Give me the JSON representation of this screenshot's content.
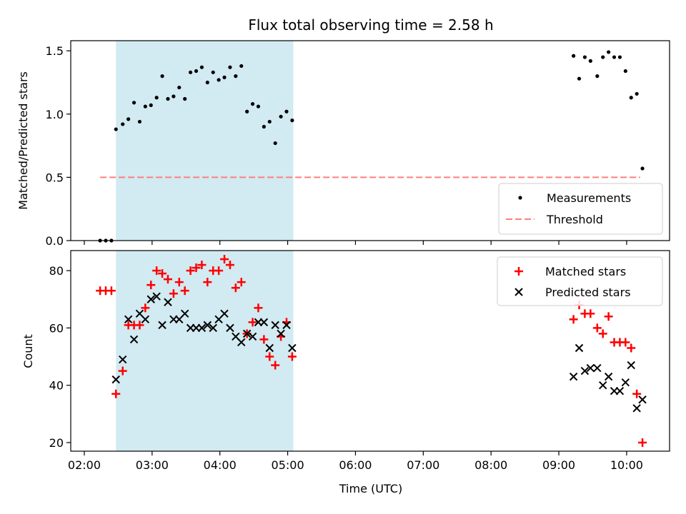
{
  "figure": {
    "title": "Flux total observing time = 2.58 h",
    "xlabel": "Time (UTC)",
    "x_ticks": [
      "02:00",
      "03:00",
      "04:00",
      "05:00",
      "06:00",
      "07:00",
      "08:00",
      "09:00",
      "10:00"
    ],
    "colors": {
      "shade": "#add8e6",
      "measurement": "#000000",
      "threshold": "#ff7f7f",
      "matched": "#ff0000",
      "predicted": "#000000"
    }
  },
  "chart_data": [
    {
      "type": "scatter",
      "ylabel": "Matched/Predicted stars",
      "xlim": [
        "01:48",
        "10:38"
      ],
      "ylim": [
        0,
        1.58
      ],
      "y_ticks": [
        "0.0",
        "0.5",
        "1.0",
        "1.5"
      ],
      "y_tick_values": [
        0,
        0.5,
        1.0,
        1.5
      ],
      "shaded_span": [
        "02:28",
        "05:05"
      ],
      "legend": {
        "position": "lower-right",
        "entries": [
          "Measurements",
          "Threshold"
        ]
      },
      "threshold": {
        "name": "Threshold",
        "y": 0.5,
        "x": [
          "02:14",
          "10:12"
        ],
        "style": "dashed"
      },
      "series": [
        {
          "name": "Measurements",
          "marker": "dot",
          "points": [
            [
              "02:14",
              0.0
            ],
            [
              "02:19",
              0.0
            ],
            [
              "02:24",
              0.0
            ],
            [
              "02:28",
              0.88
            ],
            [
              "02:34",
              0.92
            ],
            [
              "02:39",
              0.96
            ],
            [
              "02:44",
              1.09
            ],
            [
              "02:49",
              0.94
            ],
            [
              "02:54",
              1.06
            ],
            [
              "02:59",
              1.07
            ],
            [
              "03:04",
              1.13
            ],
            [
              "03:09",
              1.3
            ],
            [
              "03:14",
              1.12
            ],
            [
              "03:19",
              1.14
            ],
            [
              "03:24",
              1.21
            ],
            [
              "03:29",
              1.12
            ],
            [
              "03:34",
              1.33
            ],
            [
              "03:39",
              1.34
            ],
            [
              "03:44",
              1.37
            ],
            [
              "03:49",
              1.25
            ],
            [
              "03:54",
              1.33
            ],
            [
              "03:59",
              1.27
            ],
            [
              "04:04",
              1.29
            ],
            [
              "04:09",
              1.37
            ],
            [
              "04:14",
              1.3
            ],
            [
              "04:19",
              1.38
            ],
            [
              "04:24",
              1.02
            ],
            [
              "04:29",
              1.08
            ],
            [
              "04:34",
              1.06
            ],
            [
              "04:39",
              0.9
            ],
            [
              "04:44",
              0.94
            ],
            [
              "04:49",
              0.77
            ],
            [
              "04:54",
              0.98
            ],
            [
              "04:59",
              1.02
            ],
            [
              "05:04",
              0.95
            ],
            [
              "09:13",
              1.46
            ],
            [
              "09:18",
              1.28
            ],
            [
              "09:23",
              1.45
            ],
            [
              "09:28",
              1.42
            ],
            [
              "09:34",
              1.3
            ],
            [
              "09:39",
              1.45
            ],
            [
              "09:44",
              1.49
            ],
            [
              "09:49",
              1.45
            ],
            [
              "09:54",
              1.45
            ],
            [
              "09:59",
              1.34
            ],
            [
              "10:04",
              1.13
            ],
            [
              "10:09",
              1.16
            ],
            [
              "10:14",
              0.57
            ]
          ]
        }
      ]
    },
    {
      "type": "scatter",
      "ylabel": "Count",
      "xlim": [
        "01:48",
        "10:38"
      ],
      "ylim": [
        17,
        87
      ],
      "y_ticks": [
        "20",
        "40",
        "60",
        "80"
      ],
      "y_tick_values": [
        20,
        40,
        60,
        80
      ],
      "shaded_span": [
        "02:28",
        "05:05"
      ],
      "legend": {
        "position": "upper-right",
        "entries": [
          "Matched stars",
          "Predicted stars"
        ]
      },
      "series": [
        {
          "name": "Matched stars",
          "marker": "plus",
          "points": [
            [
              "02:14",
              73
            ],
            [
              "02:19",
              73
            ],
            [
              "02:24",
              73
            ],
            [
              "02:28",
              37
            ],
            [
              "02:34",
              45
            ],
            [
              "02:39",
              61
            ],
            [
              "02:44",
              61
            ],
            [
              "02:49",
              61
            ],
            [
              "02:54",
              67
            ],
            [
              "02:59",
              75
            ],
            [
              "03:04",
              80
            ],
            [
              "03:09",
              79
            ],
            [
              "03:14",
              77
            ],
            [
              "03:19",
              72
            ],
            [
              "03:24",
              76
            ],
            [
              "03:29",
              73
            ],
            [
              "03:34",
              80
            ],
            [
              "03:39",
              81
            ],
            [
              "03:44",
              82
            ],
            [
              "03:49",
              76
            ],
            [
              "03:54",
              80
            ],
            [
              "03:59",
              80
            ],
            [
              "04:04",
              84
            ],
            [
              "04:09",
              82
            ],
            [
              "04:14",
              74
            ],
            [
              "04:19",
              76
            ],
            [
              "04:24",
              58
            ],
            [
              "04:29",
              62
            ],
            [
              "04:34",
              67
            ],
            [
              "04:39",
              56
            ],
            [
              "04:44",
              50
            ],
            [
              "04:49",
              47
            ],
            [
              "04:54",
              57
            ],
            [
              "04:59",
              62
            ],
            [
              "05:04",
              50
            ],
            [
              "09:13",
              63
            ],
            [
              "09:18",
              68
            ],
            [
              "09:23",
              65
            ],
            [
              "09:28",
              65
            ],
            [
              "09:34",
              60
            ],
            [
              "09:39",
              58
            ],
            [
              "09:44",
              64
            ],
            [
              "09:49",
              55
            ],
            [
              "09:54",
              55
            ],
            [
              "09:59",
              55
            ],
            [
              "10:04",
              53
            ],
            [
              "10:09",
              37
            ],
            [
              "10:14",
              20
            ]
          ]
        },
        {
          "name": "Predicted stars",
          "marker": "x",
          "points": [
            [
              "02:28",
              42
            ],
            [
              "02:34",
              49
            ],
            [
              "02:39",
              63
            ],
            [
              "02:44",
              56
            ],
            [
              "02:49",
              65
            ],
            [
              "02:54",
              63
            ],
            [
              "02:59",
              70
            ],
            [
              "03:04",
              71
            ],
            [
              "03:09",
              61
            ],
            [
              "03:14",
              69
            ],
            [
              "03:19",
              63
            ],
            [
              "03:24",
              63
            ],
            [
              "03:29",
              65
            ],
            [
              "03:34",
              60
            ],
            [
              "03:39",
              60
            ],
            [
              "03:44",
              60
            ],
            [
              "03:49",
              61
            ],
            [
              "03:54",
              60
            ],
            [
              "03:59",
              63
            ],
            [
              "04:04",
              65
            ],
            [
              "04:09",
              60
            ],
            [
              "04:14",
              57
            ],
            [
              "04:19",
              55
            ],
            [
              "04:24",
              58
            ],
            [
              "04:29",
              57
            ],
            [
              "04:34",
              62
            ],
            [
              "04:39",
              62
            ],
            [
              "04:44",
              53
            ],
            [
              "04:49",
              61
            ],
            [
              "04:54",
              58
            ],
            [
              "04:59",
              61
            ],
            [
              "05:04",
              53
            ],
            [
              "09:13",
              43
            ],
            [
              "09:18",
              53
            ],
            [
              "09:23",
              45
            ],
            [
              "09:28",
              46
            ],
            [
              "09:34",
              46
            ],
            [
              "09:39",
              40
            ],
            [
              "09:44",
              43
            ],
            [
              "09:49",
              38
            ],
            [
              "09:54",
              38
            ],
            [
              "09:59",
              41
            ],
            [
              "10:04",
              47
            ],
            [
              "10:09",
              32
            ],
            [
              "10:14",
              35
            ]
          ]
        }
      ]
    }
  ]
}
